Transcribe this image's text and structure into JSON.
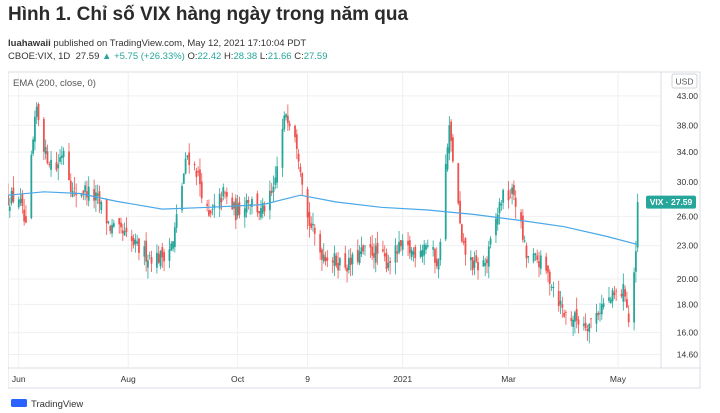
{
  "title": "Hình 1. Chỉ số VIX hàng ngày trong năm qua",
  "publisher": {
    "author": "luahawaii",
    "text": "published on TradingView.com, May 12, 2021 17:10:04 PDT"
  },
  "ohlc": {
    "symbol": "CBOE:VIX, 1D",
    "last": "27.59",
    "change": "+5.75 (+26.33%)",
    "o_label": "O:",
    "o": "22.42",
    "h_label": "H:",
    "h": "28.38",
    "l_label": "L:",
    "l": "21.66",
    "c_label": "C:",
    "c": "27.59"
  },
  "indicator_label": "EMA (200, close, 0)",
  "currency": "USD",
  "price_tag": "VIX · 27.59",
  "logo_text": "TradingView",
  "colors": {
    "up": "#26a69a",
    "down": "#ef5350",
    "ema": "#4aa8e8",
    "grid": "#eef0f3"
  },
  "chart_data": {
    "type": "candlestick",
    "scale": "log",
    "ylim": [
      13.8,
      47.5
    ],
    "y_ticks": [
      14.6,
      16.0,
      18.0,
      20.0,
      23.0,
      26.0,
      30.0,
      34.0,
      38.0,
      43.0
    ],
    "y_tick_labels": [
      "14.60",
      "16.00",
      "18.00",
      "20.00",
      "23.00",
      "26.00",
      "30.00",
      "34.00",
      "38.00",
      "43.00"
    ],
    "x_range": [
      "2020-05-26",
      "2021-05-25"
    ],
    "x_ticks": [
      {
        "date": "2020-06-01",
        "label": "Jun"
      },
      {
        "date": "2020-08-01",
        "label": "Aug"
      },
      {
        "date": "2020-10-01",
        "label": "Oct"
      },
      {
        "date": "2020-11-09",
        "label": "9"
      },
      {
        "date": "2021-01-01",
        "label": "2021"
      },
      {
        "date": "2021-03-01",
        "label": "Mar"
      },
      {
        "date": "2021-05-01",
        "label": "May"
      }
    ],
    "close_path": [
      [
        "2020-05-26",
        28.0
      ],
      [
        "2020-06-01",
        28.2
      ],
      [
        "2020-06-05",
        24.5
      ],
      [
        "2020-06-11",
        40.8
      ],
      [
        "2020-06-16",
        33.7
      ],
      [
        "2020-06-22",
        31.8
      ],
      [
        "2020-06-26",
        34.7
      ],
      [
        "2020-07-01",
        28.6
      ],
      [
        "2020-07-08",
        29.0
      ],
      [
        "2020-07-15",
        27.8
      ],
      [
        "2020-07-22",
        24.8
      ],
      [
        "2020-07-29",
        24.1
      ],
      [
        "2020-08-05",
        22.9
      ],
      [
        "2020-08-12",
        22.1
      ],
      [
        "2020-08-19",
        21.9
      ],
      [
        "2020-08-26",
        23.2
      ],
      [
        "2020-09-03",
        33.6
      ],
      [
        "2020-09-08",
        31.5
      ],
      [
        "2020-09-15",
        25.6
      ],
      [
        "2020-09-23",
        28.6
      ],
      [
        "2020-09-30",
        26.4
      ],
      [
        "2020-10-07",
        28.1
      ],
      [
        "2020-10-14",
        26.4
      ],
      [
        "2020-10-21",
        28.6
      ],
      [
        "2020-10-28",
        40.3
      ],
      [
        "2020-11-02",
        37.1
      ],
      [
        "2020-11-09",
        25.8
      ],
      [
        "2020-11-16",
        22.5
      ],
      [
        "2020-11-24",
        21.6
      ],
      [
        "2020-12-02",
        21.2
      ],
      [
        "2020-12-09",
        22.3
      ],
      [
        "2020-12-16",
        22.5
      ],
      [
        "2020-12-23",
        21.5
      ],
      [
        "2020-12-31",
        22.8
      ],
      [
        "2021-01-07",
        22.4
      ],
      [
        "2021-01-14",
        23.3
      ],
      [
        "2021-01-21",
        21.3
      ],
      [
        "2021-01-27",
        37.2
      ],
      [
        "2021-02-03",
        22.9
      ],
      [
        "2021-02-10",
        21.0
      ],
      [
        "2021-02-17",
        21.5
      ],
      [
        "2021-02-25",
        28.0
      ],
      [
        "2021-03-04",
        28.6
      ],
      [
        "2021-03-11",
        21.9
      ],
      [
        "2021-03-18",
        21.6
      ],
      [
        "2021-03-25",
        19.8
      ],
      [
        "2021-04-01",
        17.3
      ],
      [
        "2021-04-08",
        16.9
      ],
      [
        "2021-04-15",
        16.6
      ],
      [
        "2021-04-22",
        17.9
      ],
      [
        "2021-04-29",
        18.6
      ],
      [
        "2021-05-05",
        19.1
      ],
      [
        "2021-05-07",
        16.7
      ],
      [
        "2021-05-11",
        21.8
      ],
      [
        "2021-05-12",
        27.6
      ]
    ],
    "ema_200": [
      [
        "2020-05-26",
        28.4
      ],
      [
        "2020-06-15",
        28.8
      ],
      [
        "2020-07-05",
        28.6
      ],
      [
        "2020-07-25",
        27.7
      ],
      [
        "2020-08-20",
        26.8
      ],
      [
        "2020-09-15",
        27.0
      ],
      [
        "2020-10-15",
        27.3
      ],
      [
        "2020-11-05",
        28.4
      ],
      [
        "2020-11-25",
        27.6
      ],
      [
        "2020-12-20",
        27.0
      ],
      [
        "2021-01-15",
        26.7
      ],
      [
        "2021-02-10",
        26.2
      ],
      [
        "2021-03-10",
        25.5
      ],
      [
        "2021-04-01",
        24.9
      ],
      [
        "2021-04-25",
        23.9
      ],
      [
        "2021-05-12",
        23.1
      ]
    ],
    "last_close": 27.59
  }
}
